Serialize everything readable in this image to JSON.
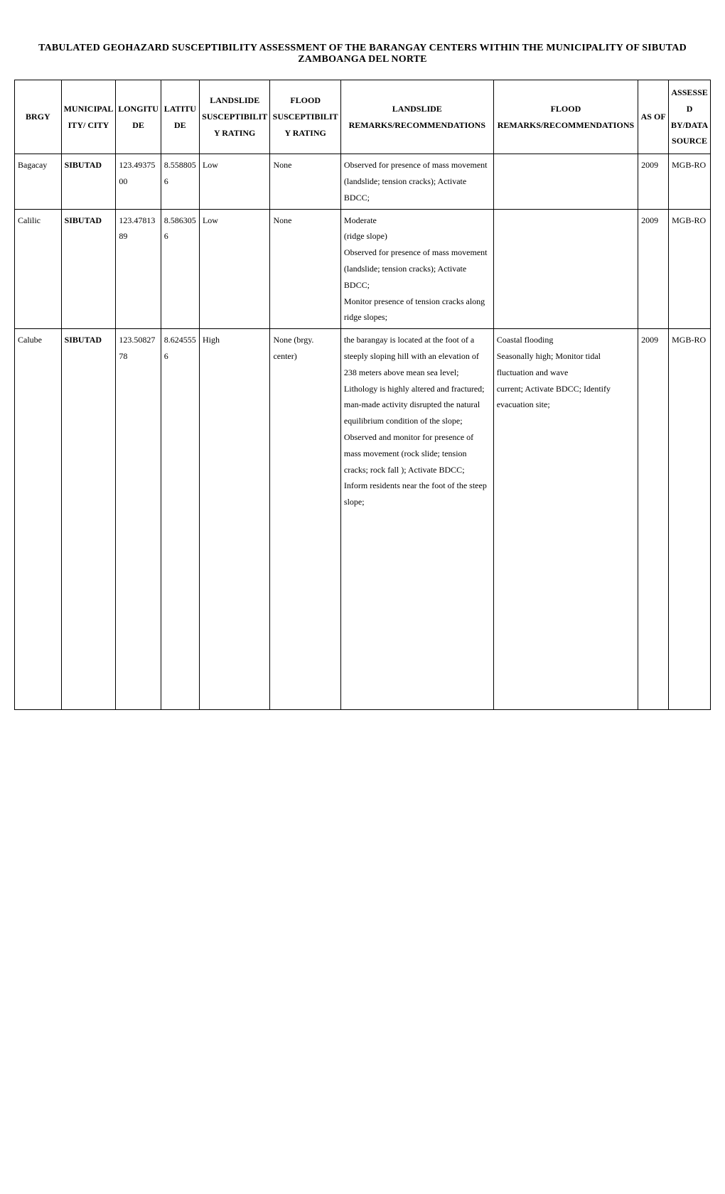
{
  "title": "TABULATED GEOHAZARD SUSCEPTIBILITY ASSESSMENT OF THE BARANGAY CENTERS WITHIN THE MUNICIPALITY OF SIBUTAD ZAMBOANGA DEL NORTE",
  "columns": {
    "brgy": "BRGY",
    "municipality": "MUNICIPALITY/ CITY",
    "longitude": "LONGITUDE",
    "latitude": "LATITUDE",
    "landslide_rating": "LANDSLIDE SUSCEPTIBILITY RATING",
    "flood_rating": "FLOOD SUSCEPTIBILITY RATING",
    "landslide_remarks": "LANDSLIDE REMARKS/RECOMMENDATIONS",
    "flood_remarks": "FLOOD REMARKS/RECOMMENDATIONS",
    "asof": "AS OF",
    "source": "ASSESSED BY/DATA SOURCE"
  },
  "rows": [
    {
      "brgy": "Bagacay",
      "municipality": "SIBUTAD",
      "longitude": "123.4937500",
      "latitude": "8.5588056",
      "landslide_rating": "Low",
      "flood_rating": "None",
      "landslide_remarks": "Observed for presence of mass movement (landslide; tension cracks); Activate BDCC;",
      "flood_remarks": "",
      "asof": "2009",
      "source": "MGB-RO"
    },
    {
      "brgy": "Calilic",
      "municipality": "SIBUTAD",
      "longitude": "123.4781389",
      "latitude": "8.5863056",
      "landslide_rating": "Low",
      "flood_rating": "None",
      "landslide_remarks": "Moderate\n(ridge slope)\nObserved for presence of mass movement (landslide; tension cracks); Activate BDCC;\nMonitor presence of tension cracks along ridge slopes;",
      "flood_remarks": "",
      "asof": "2009",
      "source": "MGB-RO"
    },
    {
      "brgy": "Calube",
      "municipality": "SIBUTAD",
      "longitude": "123.5082778",
      "latitude": "8.6245556",
      "landslide_rating": "High",
      "flood_rating": "None (brgy. center)",
      "landslide_remarks": "the barangay is located at the foot of a steeply sloping hill with an elevation of 238 meters above mean sea level; Lithology is highly altered and fractured; man-made activity disrupted the natural equilibrium condition of the slope;\nObserved and monitor for presence of mass movement (rock slide; tension cracks; rock fall ); Activate BDCC; Inform residents near the foot of the steep slope;",
      "flood_remarks": "Coastal flooding\nSeasonally high; Monitor tidal fluctuation and wave\ncurrent; Activate BDCC; Identify evacuation site;",
      "asof": "2009",
      "source": "MGB-RO"
    }
  ]
}
